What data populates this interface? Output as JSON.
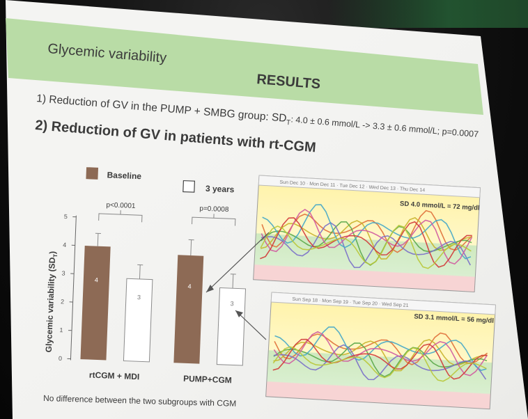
{
  "slide": {
    "header": "Glycemic variability",
    "section": "RESULTS",
    "point1": "1) Reduction of GV in the PUMP + SMBG group: SD",
    "point1_sub": "T",
    "point1_tail": ": 4.0 ± 0.6 mmol/L -> 3.3 ± 0.6 mmol/L; p=0.0007",
    "point2": "2) Reduction of GV in patients with rt-CGM",
    "footnote": "No difference between the two subgroups with CGM"
  },
  "chart_data": {
    "type": "bar",
    "ylabel": "Glycemic variability (SDT)",
    "ylim": [
      0,
      5
    ],
    "yticks": [
      "0",
      "1",
      "2",
      "3",
      "4",
      "5"
    ],
    "categories": [
      "rtCGM + MDI",
      "PUMP+CGM"
    ],
    "series": [
      {
        "name": "Baseline",
        "values": [
          4,
          3.8
        ],
        "labels": [
          "4",
          "4"
        ],
        "color": "#8d6a55"
      },
      {
        "name": "3 years",
        "values": [
          2.9,
          2.7
        ],
        "labels": [
          "3",
          "3"
        ],
        "color": "#ffffff"
      }
    ],
    "errors": [
      [
        0.45,
        0.5
      ],
      [
        0.55,
        0.5
      ]
    ],
    "pvalues": [
      "p<0.0001",
      "p=0.0008"
    ]
  },
  "cgm_panels": [
    {
      "annotation": "SD 4.0 mmol/L = 72 mg/dl",
      "lines": [
        "#e0703a",
        "#c9b22a",
        "#5aa84a",
        "#7a6fc9",
        "#45a7c8",
        "#d05aa0",
        "#d23a3a",
        "#b9c83a"
      ]
    },
    {
      "annotation": "SD 3.1 mmol/L = 56 mg/dl",
      "lines": [
        "#e0703a",
        "#c9b22a",
        "#5aa84a",
        "#7a6fc9",
        "#45a7c8",
        "#d05aa0",
        "#d23a3a",
        "#b9c83a"
      ]
    }
  ]
}
